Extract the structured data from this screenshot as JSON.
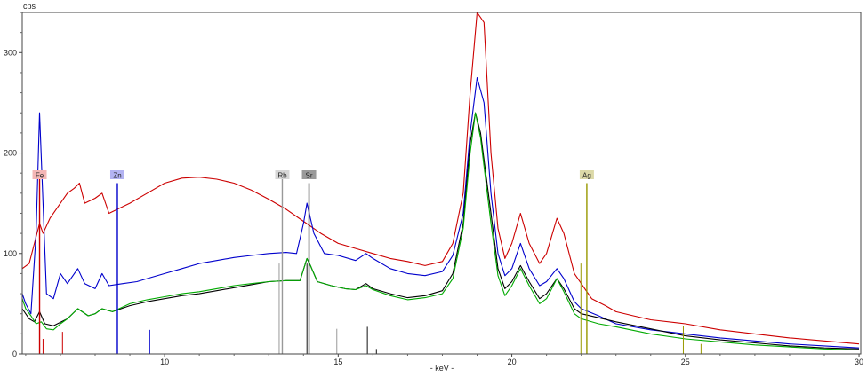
{
  "chart_data": {
    "type": "line",
    "title": "",
    "xlabel": "- keV -",
    "ylabel": "cps",
    "xlim": [
      5.9,
      30.05
    ],
    "ylim": [
      0,
      340
    ],
    "x_ticks": [
      "10",
      "15",
      "20",
      "25",
      "30"
    ],
    "y_ticks": [
      "0",
      "100",
      "200",
      "300"
    ],
    "grid": false,
    "legend": "none",
    "series": [
      {
        "color": "#cc0000",
        "points": [
          [
            5.9,
            85
          ],
          [
            6.1,
            90
          ],
          [
            6.25,
            110
          ],
          [
            6.4,
            130
          ],
          [
            6.5,
            120
          ],
          [
            6.7,
            135
          ],
          [
            7.0,
            150
          ],
          [
            7.2,
            160
          ],
          [
            7.4,
            165
          ],
          [
            7.55,
            170
          ],
          [
            7.7,
            150
          ],
          [
            8.0,
            155
          ],
          [
            8.2,
            160
          ],
          [
            8.4,
            140
          ],
          [
            8.7,
            145
          ],
          [
            9.0,
            150
          ],
          [
            9.5,
            160
          ],
          [
            10.0,
            170
          ],
          [
            10.5,
            175
          ],
          [
            11.0,
            176
          ],
          [
            11.5,
            174
          ],
          [
            12.0,
            170
          ],
          [
            12.5,
            163
          ],
          [
            13.0,
            154
          ],
          [
            13.5,
            144
          ],
          [
            14.0,
            132
          ],
          [
            14.5,
            120
          ],
          [
            15.0,
            110
          ],
          [
            15.5,
            105
          ],
          [
            16.0,
            100
          ],
          [
            16.5,
            95
          ],
          [
            17.0,
            92
          ],
          [
            17.5,
            88
          ],
          [
            18.0,
            92
          ],
          [
            18.3,
            110
          ],
          [
            18.6,
            160
          ],
          [
            18.8,
            260
          ],
          [
            19.0,
            340
          ],
          [
            19.2,
            330
          ],
          [
            19.4,
            200
          ],
          [
            19.6,
            125
          ],
          [
            19.8,
            95
          ],
          [
            20.0,
            110
          ],
          [
            20.25,
            140
          ],
          [
            20.5,
            110
          ],
          [
            20.8,
            90
          ],
          [
            21.0,
            100
          ],
          [
            21.3,
            135
          ],
          [
            21.5,
            120
          ],
          [
            21.8,
            80
          ],
          [
            22.0,
            70
          ],
          [
            22.3,
            55
          ],
          [
            22.7,
            48
          ],
          [
            23.0,
            42
          ],
          [
            23.5,
            38
          ],
          [
            24.0,
            34
          ],
          [
            25.0,
            30
          ],
          [
            26.0,
            24
          ],
          [
            27.0,
            20
          ],
          [
            28.0,
            16
          ],
          [
            29.0,
            13
          ],
          [
            30.0,
            10
          ]
        ]
      },
      {
        "color": "#0000cc",
        "points": [
          [
            5.9,
            60
          ],
          [
            6.0,
            50
          ],
          [
            6.15,
            40
          ],
          [
            6.3,
            120
          ],
          [
            6.4,
            240
          ],
          [
            6.5,
            150
          ],
          [
            6.6,
            60
          ],
          [
            6.8,
            55
          ],
          [
            7.0,
            80
          ],
          [
            7.2,
            70
          ],
          [
            7.5,
            85
          ],
          [
            7.7,
            70
          ],
          [
            8.0,
            65
          ],
          [
            8.2,
            80
          ],
          [
            8.4,
            68
          ],
          [
            8.8,
            70
          ],
          [
            9.2,
            72
          ],
          [
            9.6,
            76
          ],
          [
            10.0,
            80
          ],
          [
            10.5,
            85
          ],
          [
            11.0,
            90
          ],
          [
            11.5,
            93
          ],
          [
            12.0,
            96
          ],
          [
            12.5,
            98
          ],
          [
            13.0,
            100
          ],
          [
            13.5,
            101
          ],
          [
            13.8,
            100
          ],
          [
            14.0,
            130
          ],
          [
            14.1,
            150
          ],
          [
            14.3,
            120
          ],
          [
            14.6,
            100
          ],
          [
            15.0,
            98
          ],
          [
            15.5,
            93
          ],
          [
            15.8,
            100
          ],
          [
            16.0,
            95
          ],
          [
            16.5,
            85
          ],
          [
            17.0,
            80
          ],
          [
            17.5,
            78
          ],
          [
            18.0,
            82
          ],
          [
            18.3,
            98
          ],
          [
            18.6,
            140
          ],
          [
            18.8,
            220
          ],
          [
            19.0,
            275
          ],
          [
            19.2,
            250
          ],
          [
            19.4,
            160
          ],
          [
            19.6,
            100
          ],
          [
            19.8,
            78
          ],
          [
            20.0,
            85
          ],
          [
            20.25,
            110
          ],
          [
            20.5,
            85
          ],
          [
            20.8,
            68
          ],
          [
            21.0,
            72
          ],
          [
            21.3,
            85
          ],
          [
            21.5,
            75
          ],
          [
            21.8,
            52
          ],
          [
            22.0,
            45
          ],
          [
            22.5,
            38
          ],
          [
            23.0,
            30
          ],
          [
            24.0,
            24
          ],
          [
            25.0,
            20
          ],
          [
            26.0,
            16
          ],
          [
            27.0,
            13
          ],
          [
            28.0,
            10
          ],
          [
            29.0,
            8
          ],
          [
            30.0,
            6
          ]
        ]
      },
      {
        "color": "#000000",
        "points": [
          [
            5.9,
            45
          ],
          [
            6.1,
            35
          ],
          [
            6.25,
            32
          ],
          [
            6.4,
            42
          ],
          [
            6.55,
            30
          ],
          [
            6.8,
            28
          ],
          [
            7.2,
            35
          ],
          [
            7.5,
            45
          ],
          [
            7.8,
            38
          ],
          [
            8.0,
            40
          ],
          [
            8.2,
            45
          ],
          [
            8.5,
            42
          ],
          [
            9.0,
            48
          ],
          [
            9.5,
            52
          ],
          [
            10.0,
            55
          ],
          [
            10.5,
            58
          ],
          [
            11.0,
            60
          ],
          [
            11.5,
            63
          ],
          [
            12.0,
            66
          ],
          [
            12.5,
            69
          ],
          [
            13.0,
            72
          ],
          [
            13.5,
            73
          ],
          [
            13.9,
            73
          ],
          [
            14.1,
            95
          ],
          [
            14.2,
            88
          ],
          [
            14.4,
            72
          ],
          [
            14.8,
            68
          ],
          [
            15.2,
            65
          ],
          [
            15.5,
            64
          ],
          [
            15.8,
            70
          ],
          [
            16.0,
            65
          ],
          [
            16.5,
            60
          ],
          [
            17.0,
            56
          ],
          [
            17.5,
            58
          ],
          [
            18.0,
            63
          ],
          [
            18.3,
            80
          ],
          [
            18.6,
            130
          ],
          [
            18.8,
            210
          ],
          [
            18.95,
            240
          ],
          [
            19.1,
            220
          ],
          [
            19.4,
            140
          ],
          [
            19.6,
            85
          ],
          [
            19.8,
            65
          ],
          [
            20.0,
            72
          ],
          [
            20.25,
            88
          ],
          [
            20.5,
            72
          ],
          [
            20.8,
            55
          ],
          [
            21.0,
            60
          ],
          [
            21.3,
            75
          ],
          [
            21.5,
            65
          ],
          [
            21.8,
            45
          ],
          [
            22.0,
            40
          ],
          [
            22.5,
            36
          ],
          [
            23.0,
            32
          ],
          [
            24.0,
            25
          ],
          [
            25.0,
            18
          ],
          [
            26.0,
            14
          ],
          [
            27.0,
            11
          ],
          [
            28.0,
            8
          ],
          [
            29.0,
            6
          ],
          [
            30.0,
            5
          ]
        ]
      },
      {
        "color": "#00aa00",
        "points": [
          [
            5.9,
            55
          ],
          [
            6.0,
            45
          ],
          [
            6.15,
            38
          ],
          [
            6.3,
            30
          ],
          [
            6.45,
            32
          ],
          [
            6.6,
            25
          ],
          [
            6.8,
            24
          ],
          [
            7.0,
            30
          ],
          [
            7.2,
            35
          ],
          [
            7.5,
            45
          ],
          [
            7.8,
            38
          ],
          [
            8.0,
            40
          ],
          [
            8.2,
            45
          ],
          [
            8.5,
            42
          ],
          [
            9.0,
            50
          ],
          [
            9.5,
            54
          ],
          [
            10.0,
            57
          ],
          [
            10.5,
            60
          ],
          [
            11.0,
            62
          ],
          [
            11.5,
            65
          ],
          [
            12.0,
            68
          ],
          [
            12.5,
            70
          ],
          [
            13.0,
            72
          ],
          [
            13.5,
            73
          ],
          [
            13.9,
            73
          ],
          [
            14.1,
            95
          ],
          [
            14.2,
            88
          ],
          [
            14.4,
            72
          ],
          [
            14.8,
            68
          ],
          [
            15.2,
            65
          ],
          [
            15.5,
            64
          ],
          [
            15.8,
            68
          ],
          [
            16.0,
            64
          ],
          [
            16.5,
            58
          ],
          [
            17.0,
            54
          ],
          [
            17.5,
            56
          ],
          [
            18.0,
            60
          ],
          [
            18.3,
            75
          ],
          [
            18.6,
            125
          ],
          [
            18.8,
            200
          ],
          [
            18.95,
            240
          ],
          [
            19.1,
            215
          ],
          [
            19.4,
            130
          ],
          [
            19.6,
            78
          ],
          [
            19.8,
            58
          ],
          [
            20.0,
            68
          ],
          [
            20.25,
            85
          ],
          [
            20.5,
            68
          ],
          [
            20.8,
            50
          ],
          [
            21.0,
            55
          ],
          [
            21.3,
            75
          ],
          [
            21.5,
            62
          ],
          [
            21.8,
            40
          ],
          [
            22.0,
            35
          ],
          [
            22.5,
            30
          ],
          [
            23.0,
            27
          ],
          [
            24.0,
            20
          ],
          [
            25.0,
            15
          ],
          [
            26.0,
            12
          ],
          [
            27.0,
            9
          ],
          [
            28.0,
            7
          ],
          [
            29.0,
            5
          ],
          [
            30.0,
            4
          ]
        ]
      }
    ],
    "element_markers": [
      {
        "label": "Fe",
        "x": 6.4,
        "top": 180,
        "color": "#cc0000",
        "box_color": "#f4b6b6"
      },
      {
        "label": "Zn",
        "x": 8.64,
        "top": 170,
        "color": "#0000cc",
        "box_color": "#b3b3f2"
      },
      {
        "label": "Rb",
        "x": 13.39,
        "top": 175,
        "color": "#999999",
        "box_color": "#d6d6d6"
      },
      {
        "label": "Sr",
        "x": 14.16,
        "top": 170,
        "color": "#111111",
        "box_color": "#9a9a9a"
      },
      {
        "label": "Ag",
        "x": 22.16,
        "top": 170,
        "color": "#999900",
        "box_color": "#dcd9a8"
      }
    ],
    "line_markers": [
      {
        "x": 6.4,
        "top": 45,
        "color": "#cc0000"
      },
      {
        "x": 6.5,
        "top": 15,
        "color": "#cc0000"
      },
      {
        "x": 7.06,
        "top": 22,
        "color": "#cc0000"
      },
      {
        "x": 9.57,
        "top": 24,
        "color": "#0000cc"
      },
      {
        "x": 13.3,
        "top": 90,
        "color": "#999999"
      },
      {
        "x": 14.1,
        "top": 90,
        "color": "#111111"
      },
      {
        "x": 14.96,
        "top": 25,
        "color": "#999999"
      },
      {
        "x": 15.84,
        "top": 27,
        "color": "#111111"
      },
      {
        "x": 16.1,
        "top": 5,
        "color": "#111111"
      },
      {
        "x": 21.99,
        "top": 90,
        "color": "#999900"
      },
      {
        "x": 24.94,
        "top": 28,
        "color": "#999900"
      },
      {
        "x": 25.45,
        "top": 10,
        "color": "#999900"
      }
    ]
  }
}
